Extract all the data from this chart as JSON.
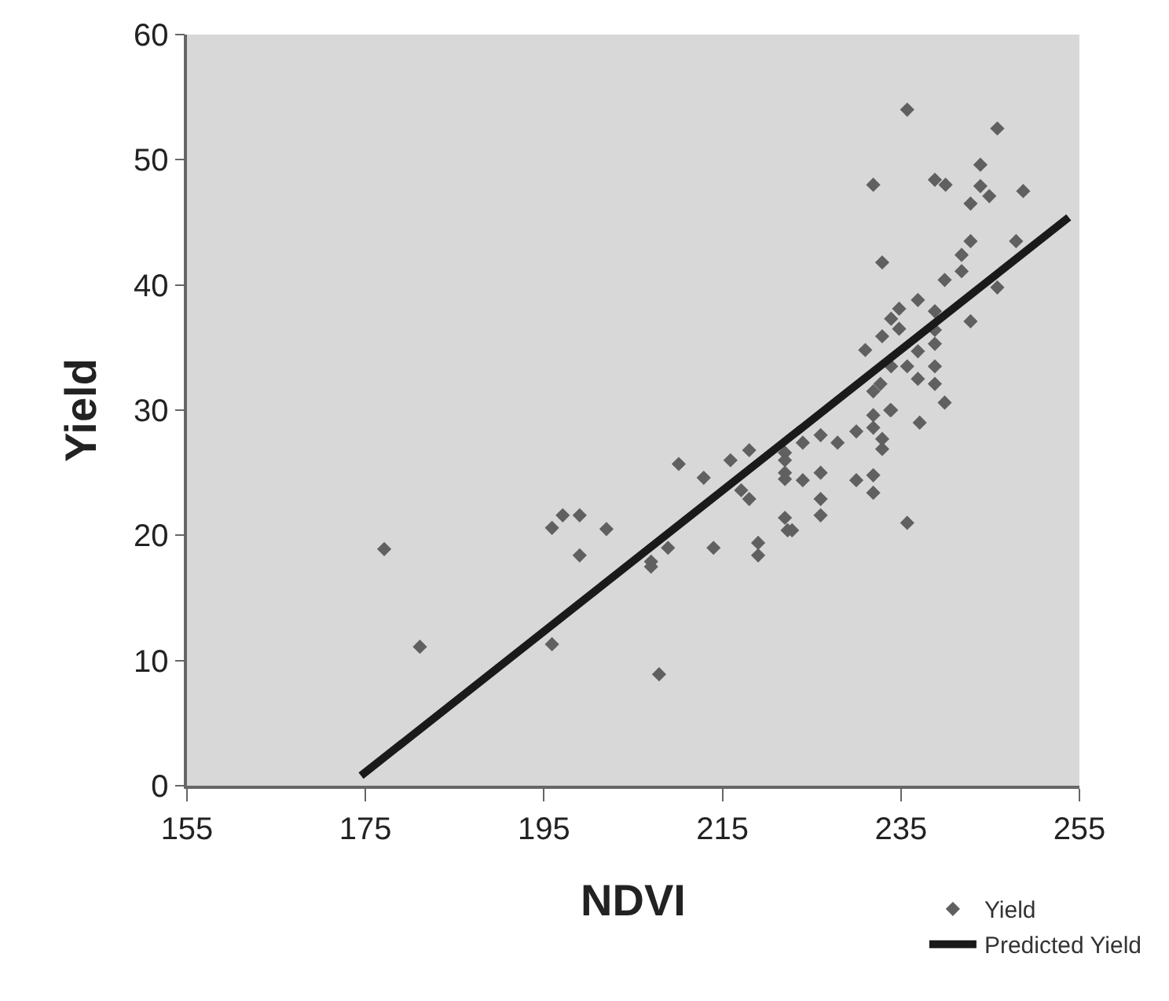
{
  "chart_data": {
    "type": "scatter",
    "xlabel": "NDVI",
    "ylabel": "Yield",
    "xlim": [
      155,
      255
    ],
    "xticks": [
      155,
      175,
      195,
      215,
      235,
      255
    ],
    "ylim": [
      0,
      60
    ],
    "yticks": [
      0,
      10,
      20,
      30,
      40,
      50,
      60
    ],
    "grid": false,
    "legend": "bottom right",
    "marker": "diamond",
    "series": [
      {
        "name": "Yield",
        "color": "#606060",
        "x": [
          177.1,
          181.1,
          195.9,
          197.1,
          199.0,
          202.0,
          199.0,
          195.9,
          207.0,
          207.9,
          207.0,
          208.9,
          210.1,
          212.9,
          214.0,
          215.9,
          218.0,
          217.1,
          218.0,
          219.0,
          219.0,
          222.0,
          222.0,
          222.0,
          222.0,
          222.0,
          222.3,
          222.8,
          224.0,
          224.0,
          226.0,
          226.0,
          226.0,
          226.0,
          227.9,
          230.0,
          230.0,
          231.9,
          231.9,
          231.9,
          231.9,
          232.9,
          232.9,
          233.8,
          235.7,
          237.1,
          235.7,
          245.8,
          243.9,
          231.9,
          238.8,
          240.0,
          243.9,
          244.9,
          248.7,
          242.8,
          242.8,
          247.9,
          241.8,
          241.8,
          232.9,
          239.9,
          245.8,
          236.9,
          234.8,
          233.9,
          238.8,
          242.8,
          234.8,
          232.9,
          238.8,
          231.0,
          236.9,
          238.8,
          233.9,
          235.7,
          236.9,
          238.8,
          238.8,
          232.7,
          231.9,
          239.9,
          233.9
        ],
        "values": [
          18.9,
          11.1,
          20.6,
          21.6,
          21.6,
          20.5,
          18.4,
          11.3,
          17.9,
          8.9,
          17.5,
          19.0,
          25.7,
          24.6,
          19.0,
          26.0,
          26.8,
          23.6,
          22.9,
          19.4,
          18.4,
          26.6,
          26.0,
          25.0,
          24.5,
          21.4,
          20.4,
          20.4,
          27.4,
          24.4,
          28.0,
          25.0,
          22.9,
          21.6,
          27.4,
          28.3,
          24.4,
          29.6,
          28.6,
          24.8,
          23.4,
          27.7,
          26.9,
          30.0,
          21.0,
          29.0,
          54.0,
          52.5,
          49.6,
          48.0,
          48.4,
          48.0,
          47.9,
          47.1,
          47.5,
          46.5,
          43.5,
          43.5,
          42.4,
          41.1,
          41.8,
          40.4,
          39.8,
          38.8,
          38.1,
          37.3,
          37.9,
          37.1,
          36.5,
          35.9,
          36.4,
          34.8,
          34.7,
          35.3,
          33.5,
          33.5,
          32.5,
          33.5,
          32.1,
          32.1,
          31.5,
          30.6,
          30.0
        ]
      },
      {
        "name": "Predicted Yield",
        "color": "#1a1a1a",
        "type": "line",
        "marker": "none",
        "x": [
          174.5,
          253.8
        ],
        "values": [
          0.8,
          45.4
        ]
      }
    ]
  }
}
